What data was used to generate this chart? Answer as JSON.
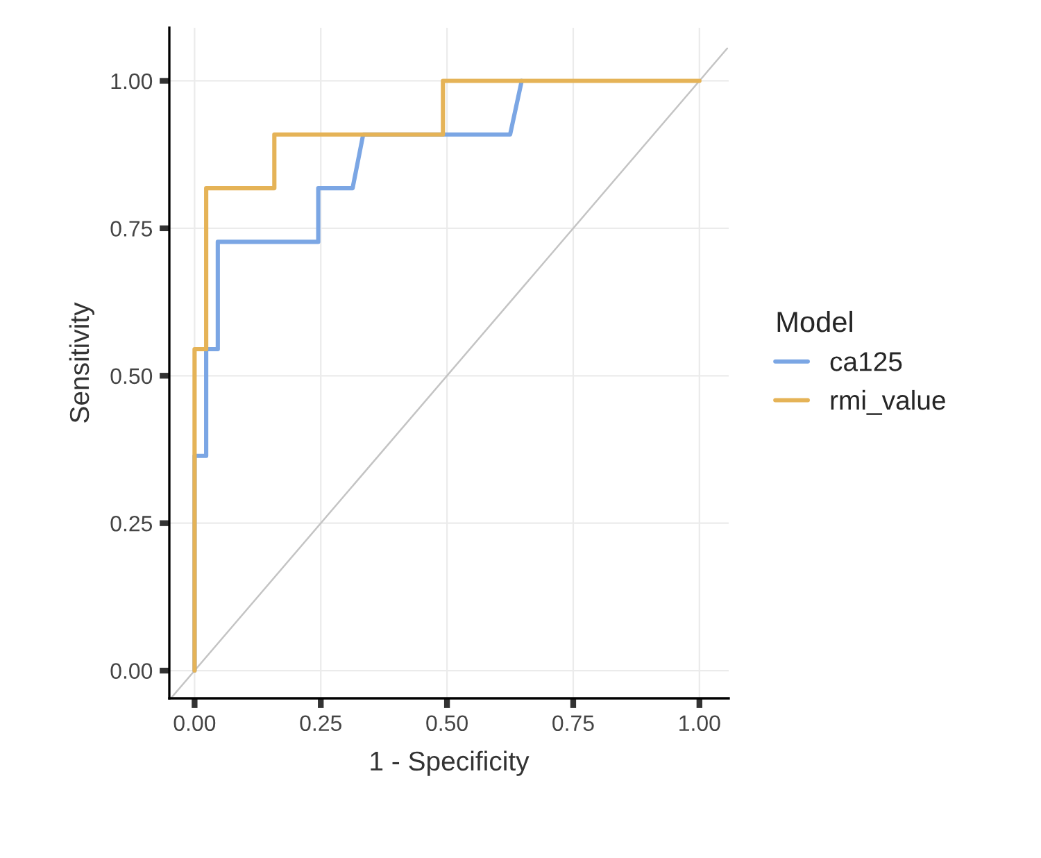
{
  "chart_data": {
    "type": "line",
    "xlabel": "1 - Specificity",
    "ylabel": "Sensitivity",
    "legend_title": "Model",
    "legend": "right",
    "grid": true,
    "xlim": [
      -0.05,
      1.058
    ],
    "ylim": [
      -0.047,
      1.09
    ],
    "xticks": [
      {
        "value": 0,
        "label": "0.00"
      },
      {
        "value": 0.25,
        "label": "0.25"
      },
      {
        "value": 0.5,
        "label": "0.50"
      },
      {
        "value": 0.75,
        "label": "0.75"
      },
      {
        "value": 1,
        "label": "1.00"
      }
    ],
    "yticks": [
      {
        "value": 0,
        "label": "0.00"
      },
      {
        "value": 0.25,
        "label": "0.25"
      },
      {
        "value": 0.5,
        "label": "0.50"
      },
      {
        "value": 0.75,
        "label": "0.75"
      },
      {
        "value": 1,
        "label": "1.00"
      }
    ],
    "series": [
      {
        "color": "#c4c4c4",
        "x": [
          -0.045,
          1.055
        ],
        "values": [
          -0.045,
          1.055
        ]
      },
      {
        "name": "ca125",
        "color": "#7ba6e4",
        "x": [
          0,
          0,
          0.023,
          0.023,
          0.046,
          0.046,
          0.245,
          0.245,
          0.313,
          0.334,
          0.625,
          0.648
        ],
        "values": [
          0,
          0.364,
          0.364,
          0.545,
          0.545,
          0.727,
          0.727,
          0.818,
          0.818,
          0.909,
          0.909,
          1
        ]
      },
      {
        "name": "rmi_value",
        "color": "#e5b357",
        "x": [
          0,
          0,
          0.023,
          0.023,
          0.158,
          0.158,
          0.492,
          0.492,
          1
        ],
        "values": [
          0,
          0.545,
          0.545,
          0.818,
          0.818,
          0.909,
          0.909,
          1,
          1
        ]
      }
    ]
  }
}
